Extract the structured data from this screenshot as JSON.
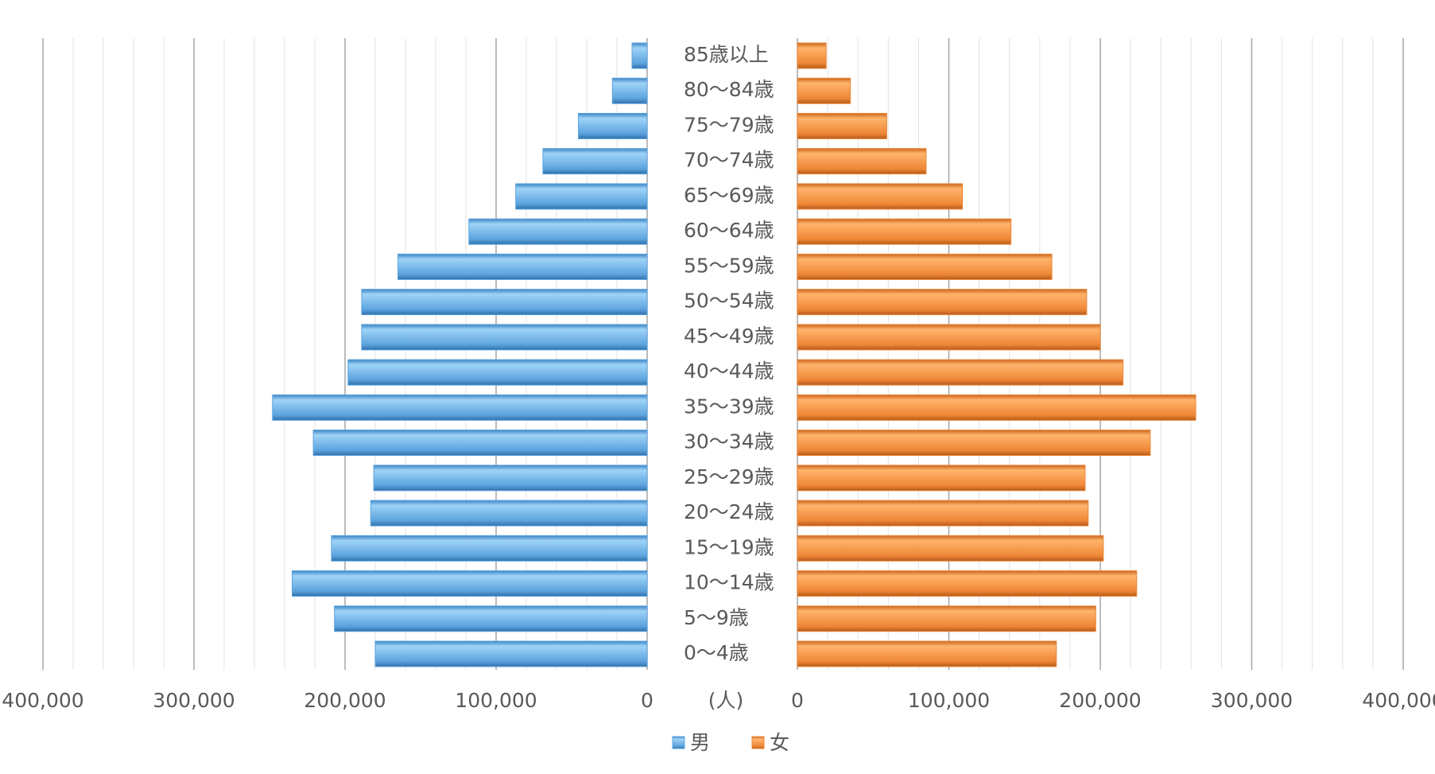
{
  "chart_data": {
    "type": "pyramid",
    "categories": [
      "85歳以上",
      "80〜84歳",
      "75〜79歳",
      "70〜74歳",
      "65〜69歳",
      "60〜64歳",
      "55〜59歳",
      "50〜54歳",
      "45〜49歳",
      "40〜44歳",
      "35〜39歳",
      "30〜34歳",
      "25〜29歳",
      "20〜24歳",
      "15〜19歳",
      "10〜14歳",
      "5〜9歳",
      "0〜4歳"
    ],
    "series": [
      {
        "name": "男",
        "color": "#5ba3de",
        "values": [
          10000,
          23000,
          45500,
          69000,
          87000,
          118000,
          165000,
          189000,
          189000,
          198000,
          248000,
          221000,
          181000,
          183000,
          209000,
          235000,
          207000,
          180000
        ]
      },
      {
        "name": "女",
        "color": "#ee8636",
        "values": [
          19000,
          35000,
          59000,
          85000,
          109000,
          141000,
          168000,
          191000,
          200000,
          215000,
          263000,
          233000,
          190000,
          192000,
          202000,
          224000,
          197000,
          171000
        ]
      }
    ],
    "xlim": [
      0,
      400000
    ],
    "xticks": [
      0,
      {
        "value": 100000,
        "label": "100,000"
      },
      {
        "value": 200000,
        "label": "200,000"
      },
      {
        "value": 300000,
        "label": "300,000"
      },
      {
        "value": 400000,
        "label": "400,000"
      }
    ],
    "axis_label": "(人)",
    "grid": true,
    "legend": "bottom"
  }
}
